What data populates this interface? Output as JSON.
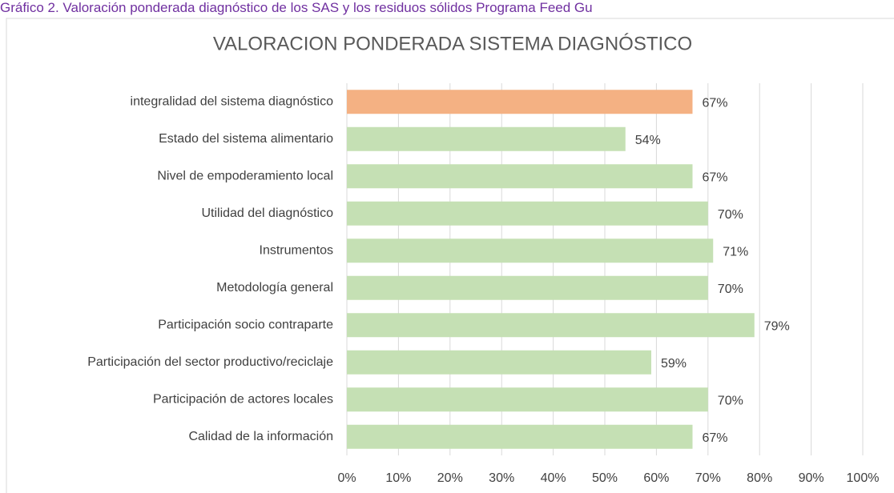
{
  "caption": "Gráfico 2. Valoración ponderada diagnóstico de los SAS y los residuos sólidos Programa Feed Gu",
  "chart_data": {
    "type": "hbar",
    "title": "VALORACION PONDERADA SISTEMA DIAGNÓSTICO",
    "categories": [
      "integralidad del sistema diagnóstico",
      "Estado del sistema alimentario",
      "Nivel de empoderamiento local",
      "Utilidad del diagnóstico",
      "Instrumentos",
      "Metodología general",
      "Participación socio contraparte",
      "Participación del sector productivo/reciclaje",
      "Participación de actores locales",
      "Calidad de la información"
    ],
    "values": [
      67,
      54,
      67,
      70,
      71,
      70,
      79,
      59,
      70,
      67
    ],
    "value_labels": [
      "67%",
      "54%",
      "67%",
      "70%",
      "71%",
      "70%",
      "79%",
      "59%",
      "70%",
      "67%"
    ],
    "colors": [
      "#f4b183",
      "#c5e0b4",
      "#c5e0b4",
      "#c5e0b4",
      "#c5e0b4",
      "#c5e0b4",
      "#c5e0b4",
      "#c5e0b4",
      "#c5e0b4",
      "#c5e0b4"
    ],
    "xlim": [
      0,
      100
    ],
    "xticks": [
      {
        "value": 0,
        "label": "0%"
      },
      {
        "value": 10,
        "label": "10%"
      },
      {
        "value": 20,
        "label": "20%"
      },
      {
        "value": 30,
        "label": "30%"
      },
      {
        "value": 40,
        "label": "40%"
      },
      {
        "value": 50,
        "label": "50%"
      },
      {
        "value": 60,
        "label": "60%"
      },
      {
        "value": 70,
        "label": "70%"
      },
      {
        "value": 80,
        "label": "80%"
      },
      {
        "value": 90,
        "label": "90%"
      },
      {
        "value": 100,
        "label": "100%"
      }
    ],
    "grid": true
  }
}
